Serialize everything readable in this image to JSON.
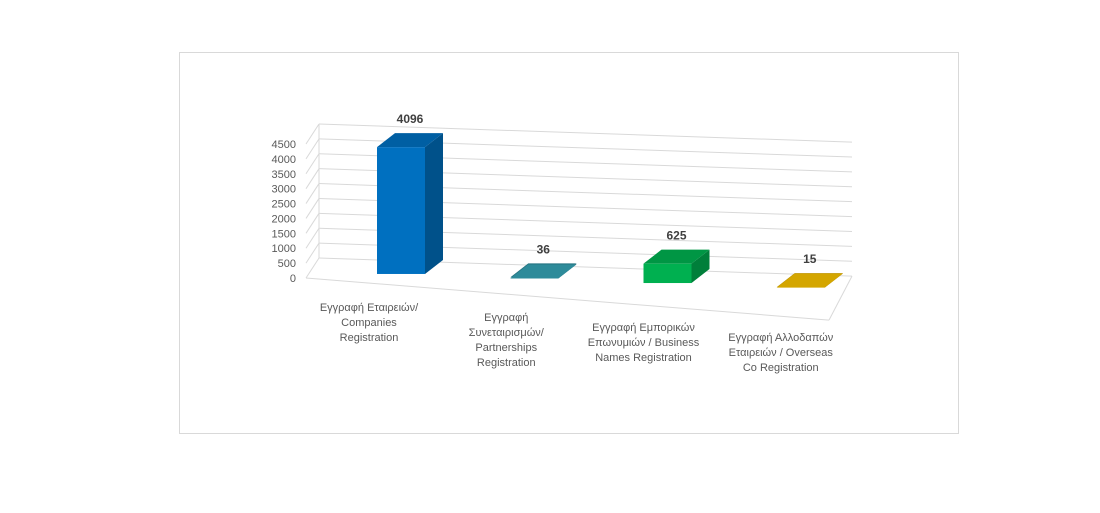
{
  "chart_data": {
    "type": "bar",
    "style": "3d-column",
    "title": "",
    "xlabel": "",
    "ylabel": "",
    "ylim": [
      0,
      4500
    ],
    "yticks": [
      0,
      500,
      1000,
      1500,
      2000,
      2500,
      3000,
      3500,
      4000,
      4500
    ],
    "grid": true,
    "legend": "none",
    "categories": [
      [
        "Εγγραφή Εταιρειών/",
        "Companies",
        "Registration"
      ],
      [
        "Εγγραφή",
        "Συνεταιρισμών/",
        "Partnerships",
        "Registration"
      ],
      [
        "Εγγραφή Εμπορικών",
        "Επωνυμιών / Business",
        "Names Registration"
      ],
      [
        "Εγγραφή Αλλοδαπών",
        "Εταιρειών / Overseas",
        "Co Registration"
      ]
    ],
    "values": [
      4096,
      36,
      625,
      15
    ],
    "data_labels": [
      "4096",
      "36",
      "625",
      "15"
    ],
    "colors": [
      "#0070c0",
      "#2e8b9a",
      "#00b050",
      "#d4a600"
    ]
  }
}
